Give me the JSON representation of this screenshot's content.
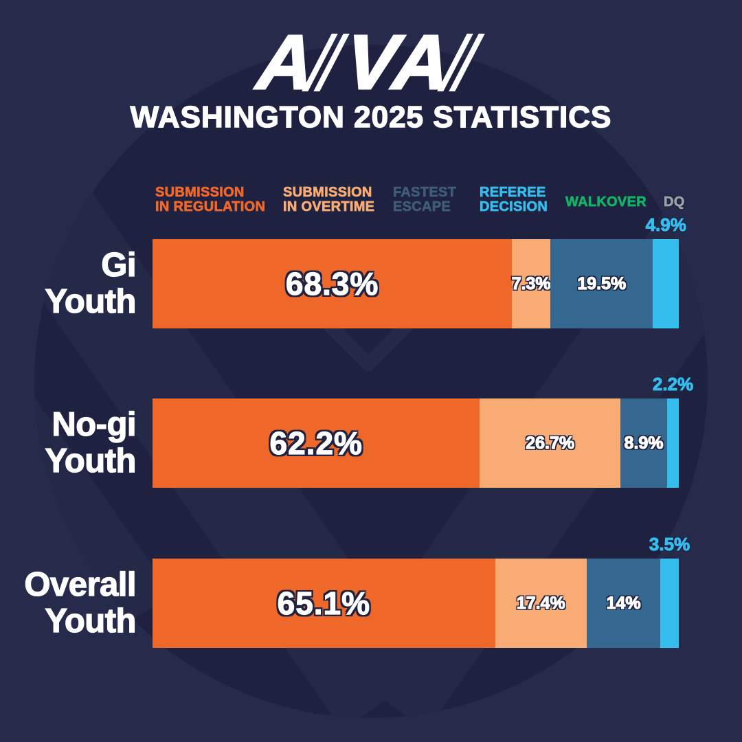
{
  "header": {
    "logo": "AVA",
    "title": "WASHINGTON 2025 STATISTICS"
  },
  "colors": {
    "background": "#262B4B",
    "watermark_circle": "#1E2240",
    "watermark_chevron": "#242948",
    "label_outline": "#1E2240",
    "text_primary": "#FFFFFF",
    "submission_in_regulation": "#F0672A",
    "submission_in_overtime": "#F8AB72",
    "fastest_escape_bar": "#346890",
    "fastest_escape_legend_text": "#3E5B78",
    "referee_decision": "#35BDEE",
    "walkover": "#14B264",
    "dq": "#9BA0A9"
  },
  "legend": {
    "items": [
      {
        "id": "submission-in-regulation",
        "line1": "SUBMISSION",
        "line2": "IN REGULATION",
        "color": "#F0672A"
      },
      {
        "id": "submission-in-overtime",
        "line1": "SUBMISSION",
        "line2": "IN OVERTIME",
        "color": "#F8AB72"
      },
      {
        "id": "fastest-escape",
        "line1": "FASTEST",
        "line2": "ESCAPE",
        "color": "#3E5B78"
      },
      {
        "id": "referee-decision",
        "line1": "REFEREE",
        "line2": "DECISION",
        "color": "#35BDEE"
      },
      {
        "id": "walkover",
        "line1": "WALKOVER",
        "line2": "",
        "color": "#14B264"
      },
      {
        "id": "dq",
        "line1": "DQ",
        "line2": "",
        "color": "#9BA0A9"
      }
    ]
  },
  "chart_data": {
    "type": "bar",
    "orientation": "horizontal-stacked",
    "title": "WASHINGTON 2025 STATISTICS",
    "unit": "%",
    "xlim": [
      0,
      100
    ],
    "value_label_format": "percent",
    "categories": [
      "Gi Youth",
      "No-gi Youth",
      "Overall Youth"
    ],
    "series": [
      {
        "name": "Submission in Regulation",
        "id": "submission-in-regulation",
        "color": "#F0672A",
        "values": [
          68.3,
          62.2,
          65.1
        ]
      },
      {
        "name": "Submission in Overtime",
        "id": "submission-in-overtime",
        "color": "#F8AB72",
        "values": [
          7.3,
          26.7,
          17.4
        ]
      },
      {
        "name": "Fastest Escape",
        "id": "fastest-escape",
        "color": "#346890",
        "values": [
          19.5,
          8.9,
          14
        ]
      },
      {
        "name": "Referee Decision",
        "id": "referee-decision",
        "color": "#35BDEE",
        "values": [
          4.9,
          2.2,
          3.5
        ]
      },
      {
        "name": "Walkover",
        "id": "walkover",
        "color": "#14B264",
        "values": [
          0,
          0,
          0
        ]
      },
      {
        "name": "DQ",
        "id": "dq",
        "color": "#9BA0A9",
        "values": [
          0,
          0,
          0
        ]
      }
    ]
  }
}
